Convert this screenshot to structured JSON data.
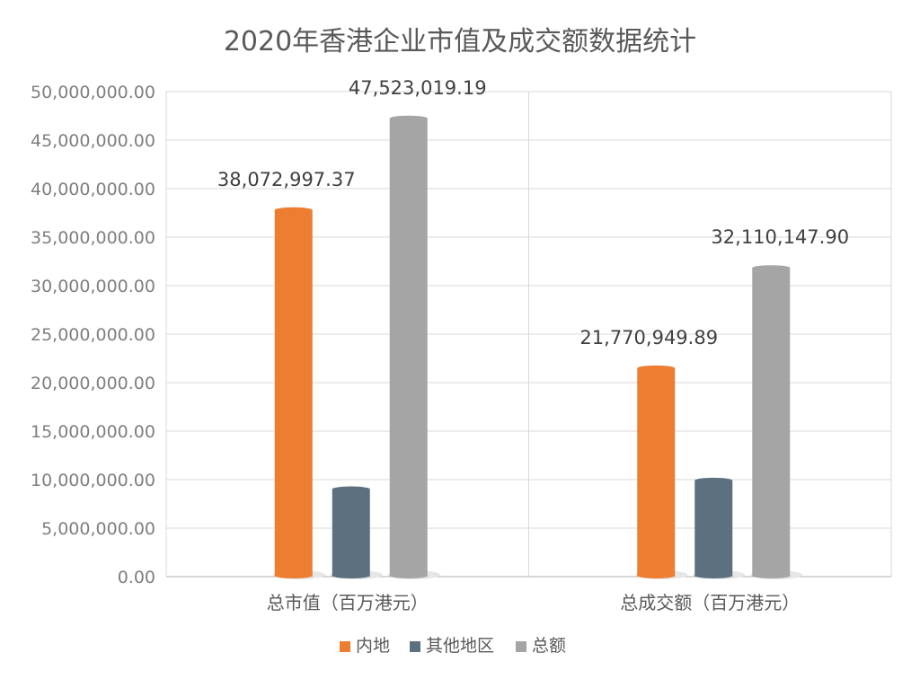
{
  "chart_data": {
    "type": "bar",
    "title": "2020年香港企业市值及成交额数据统计",
    "categories": [
      "总市值（百万港元）",
      "总成交额（百万港元）"
    ],
    "series": [
      {
        "name": "内地",
        "color": "#ED7D31",
        "values": [
          38072997.37,
          21770949.89
        ],
        "labels": [
          "38,072,997.37",
          "21,770,949.89"
        ]
      },
      {
        "name": "其他地区",
        "color": "#5D7080",
        "values": [
          9300000,
          10200000
        ],
        "labels": [
          "",
          ""
        ]
      },
      {
        "name": "总额",
        "color": "#A5A5A5",
        "values": [
          47523019.19,
          32110147.9
        ],
        "labels": [
          "47,523,019.19",
          "32,110,147.90"
        ]
      }
    ],
    "ylim": [
      0,
      50000000
    ],
    "y_ticks": [
      "0.00",
      "5,000,000.00",
      "10,000,000.00",
      "15,000,000.00",
      "20,000,000.00",
      "25,000,000.00",
      "30,000,000.00",
      "35,000,000.00",
      "40,000,000.00",
      "45,000,000.00",
      "50,000,000.00"
    ],
    "grid": true,
    "legend_position": "bottom"
  }
}
